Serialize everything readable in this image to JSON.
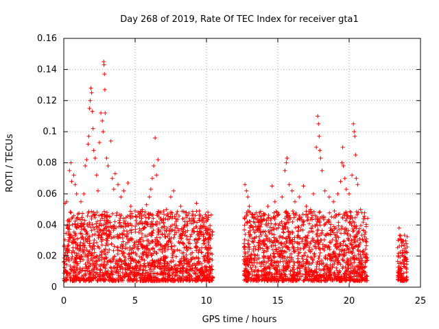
{
  "chart_data": {
    "type": "scatter",
    "title": "Day 268 of 2019, Rate Of TEC Index for receiver gta1",
    "xlabel": "GPS time / hours",
    "ylabel": "ROTI / TECUs",
    "xlim": [
      0,
      25
    ],
    "ylim": [
      0,
      0.16
    ],
    "x_ticks": [
      "0",
      "5",
      "10",
      "15",
      "20",
      "25"
    ],
    "y_ticks": [
      "0",
      "0.02",
      "0.04",
      "0.06",
      "0.08",
      "0.1",
      "0.12",
      "0.14",
      "0.16"
    ],
    "grid": true,
    "marker": "plus",
    "color": "#ff0000",
    "series": [
      {
        "values_hours_roti": [
          [
            0.1,
            0.054
          ],
          [
            0.2,
            0.055
          ],
          [
            0.3,
            0.04
          ],
          [
            0.4,
            0.075
          ],
          [
            0.5,
            0.08
          ],
          [
            0.55,
            0.068
          ],
          [
            0.7,
            0.072
          ],
          [
            0.8,
            0.066
          ],
          [
            0.9,
            0.06
          ],
          [
            1.0,
            0.044
          ],
          [
            1.2,
            0.055
          ],
          [
            1.4,
            0.06
          ],
          [
            1.5,
            0.078
          ],
          [
            1.6,
            0.082
          ],
          [
            1.7,
            0.092
          ],
          [
            1.75,
            0.097
          ],
          [
            1.8,
            0.115
          ],
          [
            1.85,
            0.12
          ],
          [
            1.9,
            0.128
          ],
          [
            1.95,
            0.125
          ],
          [
            2.0,
            0.113
          ],
          [
            2.05,
            0.102
          ],
          [
            2.1,
            0.088
          ],
          [
            2.2,
            0.083
          ],
          [
            2.3,
            0.072
          ],
          [
            2.4,
            0.062
          ],
          [
            2.5,
            0.093
          ],
          [
            2.6,
            0.112
          ],
          [
            2.7,
            0.107
          ],
          [
            2.75,
            0.1
          ],
          [
            2.8,
            0.145
          ],
          [
            2.82,
            0.143
          ],
          [
            2.85,
            0.137
          ],
          [
            2.88,
            0.127
          ],
          [
            2.9,
            0.112
          ],
          [
            3.0,
            0.083
          ],
          [
            3.1,
            0.078
          ],
          [
            3.3,
            0.094
          ],
          [
            3.4,
            0.07
          ],
          [
            3.5,
            0.063
          ],
          [
            3.6,
            0.073
          ],
          [
            3.8,
            0.066
          ],
          [
            4.0,
            0.058
          ],
          [
            4.2,
            0.062
          ],
          [
            4.5,
            0.067
          ],
          [
            4.7,
            0.052
          ],
          [
            5.0,
            0.049
          ],
          [
            5.3,
            0.045
          ],
          [
            5.5,
            0.05
          ],
          [
            5.8,
            0.053
          ],
          [
            6.0,
            0.058
          ],
          [
            6.1,
            0.063
          ],
          [
            6.2,
            0.07
          ],
          [
            6.3,
            0.078
          ],
          [
            6.4,
            0.096
          ],
          [
            6.5,
            0.072
          ],
          [
            6.6,
            0.082
          ],
          [
            6.8,
            0.048
          ],
          [
            7.0,
            0.044
          ],
          [
            7.2,
            0.05
          ],
          [
            7.5,
            0.058
          ],
          [
            7.7,
            0.062
          ],
          [
            7.9,
            0.047
          ],
          [
            8.2,
            0.052
          ],
          [
            8.5,
            0.048
          ],
          [
            8.8,
            0.044
          ],
          [
            9.0,
            0.046
          ],
          [
            9.3,
            0.054
          ],
          [
            9.5,
            0.049
          ],
          [
            9.8,
            0.044
          ],
          [
            10.1,
            0.038
          ],
          [
            10.3,
            0.031
          ],
          [
            12.7,
            0.066
          ],
          [
            12.8,
            0.062
          ],
          [
            12.9,
            0.058
          ],
          [
            13.0,
            0.052
          ],
          [
            13.2,
            0.045
          ],
          [
            13.5,
            0.048
          ],
          [
            13.8,
            0.042
          ],
          [
            14.0,
            0.046
          ],
          [
            14.3,
            0.052
          ],
          [
            14.6,
            0.065
          ],
          [
            14.8,
            0.055
          ],
          [
            15.0,
            0.048
          ],
          [
            15.3,
            0.058
          ],
          [
            15.5,
            0.075
          ],
          [
            15.6,
            0.08
          ],
          [
            15.65,
            0.083
          ],
          [
            15.8,
            0.066
          ],
          [
            16.0,
            0.062
          ],
          [
            16.2,
            0.055
          ],
          [
            16.5,
            0.058
          ],
          [
            16.8,
            0.065
          ],
          [
            17.0,
            0.052
          ],
          [
            17.3,
            0.05
          ],
          [
            17.5,
            0.06
          ],
          [
            17.7,
            0.09
          ],
          [
            17.8,
            0.11
          ],
          [
            17.85,
            0.105
          ],
          [
            17.9,
            0.097
          ],
          [
            17.95,
            0.088
          ],
          [
            18.0,
            0.083
          ],
          [
            18.1,
            0.075
          ],
          [
            18.3,
            0.062
          ],
          [
            18.6,
            0.058
          ],
          [
            18.9,
            0.055
          ],
          [
            19.2,
            0.06
          ],
          [
            19.4,
            0.068
          ],
          [
            19.5,
            0.08
          ],
          [
            19.55,
            0.09
          ],
          [
            19.6,
            0.078
          ],
          [
            19.7,
            0.07
          ],
          [
            19.8,
            0.063
          ],
          [
            20.0,
            0.06
          ],
          [
            20.2,
            0.072
          ],
          [
            20.3,
            0.105
          ],
          [
            20.35,
            0.1
          ],
          [
            20.4,
            0.097
          ],
          [
            20.45,
            0.085
          ],
          [
            20.5,
            0.07
          ],
          [
            20.6,
            0.066
          ],
          [
            20.8,
            0.05
          ],
          [
            21.0,
            0.044
          ],
          [
            21.2,
            0.039
          ],
          [
            23.5,
            0.038
          ],
          [
            23.6,
            0.033
          ],
          [
            23.8,
            0.03
          ],
          [
            24.0,
            0.028
          ]
        ]
      }
    ]
  }
}
